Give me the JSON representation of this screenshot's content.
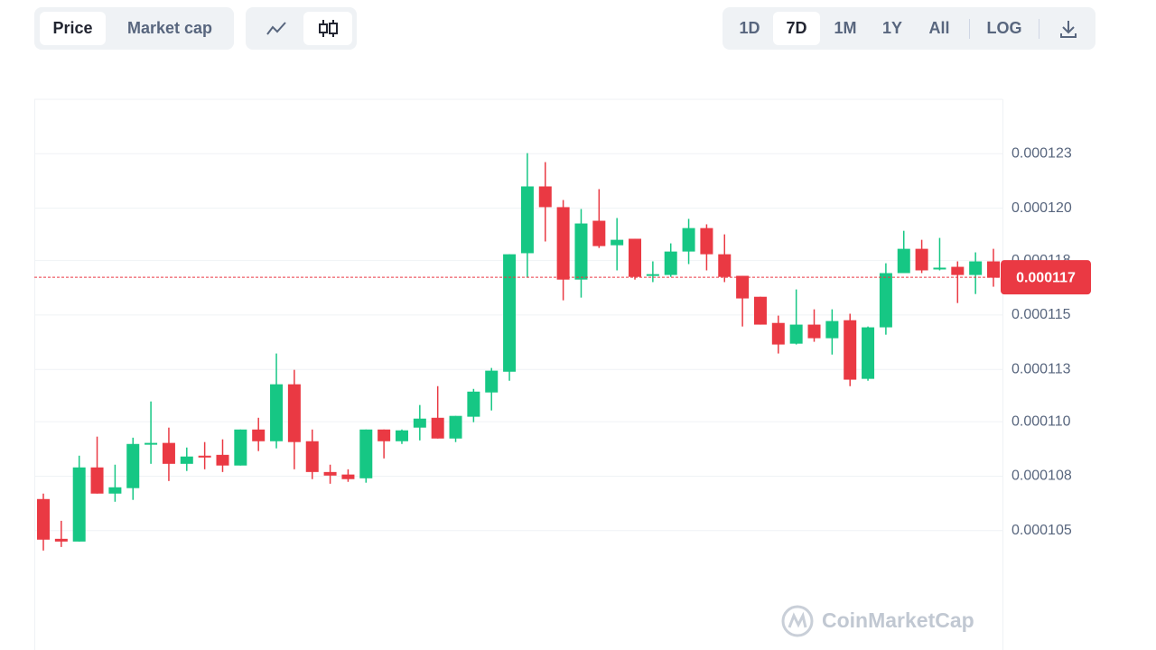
{
  "toolbar": {
    "metric_tabs": [
      "Price",
      "Market cap"
    ],
    "range_tabs": [
      "1D",
      "7D",
      "1M",
      "1Y",
      "All"
    ],
    "scale_tab": "LOG"
  },
  "chart_data": {
    "type": "candlestick",
    "open": [
      0.00010651,
      0.00010461,
      0.00010448,
      0.00010802,
      0.00010677,
      0.00010703,
      0.00010914,
      0.00010919,
      0.00010819,
      0.00010858,
      0.00010862,
      0.00010811,
      0.00010983,
      0.00010927,
      0.00011199,
      0.00010927,
      0.0001078,
      0.00010768,
      0.0001075,
      0.00010983,
      0.00010927,
      0.00010992,
      0.00011039,
      0.0001094,
      0.00011044,
      0.0001116,
      0.00011259,
      0.00011825,
      0.00012144,
      0.00012045,
      0.00011699,
      0.0001198,
      0.00011863,
      0.00011894,
      0.00011717,
      0.00011721,
      0.00011833,
      0.00011945,
      0.0001182,
      0.00011717,
      0.00011617,
      0.00011492,
      0.00011393,
      0.00011484,
      0.00011419,
      0.00011505,
      0.00011225,
      0.00011471,
      0.0001173,
      0.00011846,
      0.00011751,
      0.0001176,
      0.00011721,
      0.00011786
    ],
    "high": [
      0.00010677,
      0.00010547,
      0.00010858,
      0.00010949,
      0.00010815,
      0.00010944,
      0.00011117,
      0.00010992,
      0.00010897,
      0.00010923,
      0.00010936,
      0.00010983,
      0.00011039,
      0.00011346,
      0.00011268,
      0.00010983,
      0.00010815,
      0.00010793,
      0.00010983,
      0.00010983,
      0.00010983,
      0.000111,
      0.0001119,
      0.00011048,
      0.00011177,
      0.00011277,
      0.0001182,
      0.00012303,
      0.0001226,
      0.00012079,
      0.00012036,
      0.00012131,
      0.00011993,
      0.00011894,
      0.00011786,
      0.00011872,
      0.00011989,
      0.00011963,
      0.00011915,
      0.00011717,
      0.00011617,
      0.00011527,
      0.00011652,
      0.00011557,
      0.00011557,
      0.00011536,
      0.00011475,
      0.00011777,
      0.00011932,
      0.00011889,
      0.00011898,
      0.00011786,
      0.00011829,
      0.00011846
    ],
    "low": [
      0.00010405,
      0.00010422,
      0.00010448,
      0.00010677,
      0.00010638,
      0.00010647,
      0.00010819,
      0.00010737,
      0.00010785,
      0.00010793,
      0.0001078,
      0.00010811,
      0.0001088,
      0.00010893,
      0.00010793,
      0.00010746,
      0.00010724,
      0.00010733,
      0.00010729,
      0.00010845,
      0.00010914,
      0.00010931,
      0.0001094,
      0.00010923,
      0.00011018,
      0.00011074,
      0.00011216,
      0.00011708,
      0.00011881,
      0.000116,
      0.00011613,
      0.0001185,
      0.00011743,
      0.00011699,
      0.00011687,
      0.00011712,
      0.00011773,
      0.00011743,
      0.00011687,
      0.00011475,
      0.00011484,
      0.00011346,
      0.00011389,
      0.00011402,
      0.00011341,
      0.0001119,
      0.00011216,
      0.00011436,
      0.0001173,
      0.0001173,
      0.00011743,
      0.00011587,
      0.0001163,
      0.00011665
    ],
    "close": [
      0.00010457,
      0.00010448,
      0.00010802,
      0.00010677,
      0.00010707,
      0.00010914,
      0.00010919,
      0.00010819,
      0.00010854,
      0.00010854,
      0.00010811,
      0.00010983,
      0.00010927,
      0.00011199,
      0.00010923,
      0.0001078,
      0.00010763,
      0.00010746,
      0.00010983,
      0.00010927,
      0.00010979,
      0.00011035,
      0.0001094,
      0.00011048,
      0.00011164,
      0.00011264,
      0.0001182,
      0.00012144,
      0.00012045,
      0.00011699,
      0.00011967,
      0.00011859,
      0.00011889,
      0.00011712,
      0.00011725,
      0.00011833,
      0.00011945,
      0.0001182,
      0.00011712,
      0.00011609,
      0.00011484,
      0.00011389,
      0.00011484,
      0.00011419,
      0.00011501,
      0.00011221,
      0.00011471,
      0.0001173,
      0.00011846,
      0.00011743,
      0.00011756,
      0.00011721,
      0.00011786,
      0.00011708
    ],
    "up_color": "#16c784",
    "down_color": "#ea3943",
    "ylim": [
      9.93e-05,
      0.0001256
    ],
    "yticks": [
      {
        "value": 0.000105,
        "label": "0.000105"
      },
      {
        "value": 0.0001076,
        "label": "0.000108"
      },
      {
        "value": 0.0001102,
        "label": "0.000110"
      },
      {
        "value": 0.0001127,
        "label": "0.000113"
      },
      {
        "value": 0.0001153,
        "label": "0.000115"
      },
      {
        "value": 0.0001179,
        "label": "0.000118"
      },
      {
        "value": 0.0001204,
        "label": "0.000120"
      },
      {
        "value": 0.000123,
        "label": "0.000123"
      }
    ],
    "grid": true,
    "current_price": {
      "value": 0.0001171,
      "label": "0.000117"
    },
    "watermark": "CoinMarketCap"
  }
}
